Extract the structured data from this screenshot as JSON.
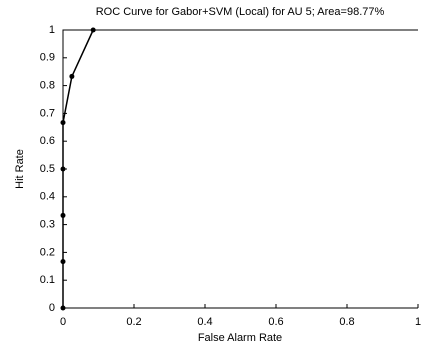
{
  "chart_data": {
    "type": "line",
    "title": "ROC Curve for Gabor+SVM (Local) for AU 5; Area=98.77%",
    "x_label": "False Alarm Rate",
    "y_label": "Hit Rate",
    "x": [
      0,
      0,
      0,
      0,
      0,
      0.025,
      0.085
    ],
    "series": [
      {
        "color": "#000000",
        "values": [
          0,
          0.167,
          0.333,
          0.5,
          0.667,
          0.833,
          1
        ]
      }
    ],
    "xlim": [
      0,
      1
    ],
    "ylim": [
      0,
      1
    ],
    "xticks": [
      0,
      0.2,
      0.4,
      0.6,
      0.8,
      1
    ],
    "yticks": [
      0,
      0.1,
      0.2,
      0.3,
      0.4,
      0.5,
      0.6,
      0.7,
      0.8,
      0.9,
      1
    ],
    "grid": false
  }
}
